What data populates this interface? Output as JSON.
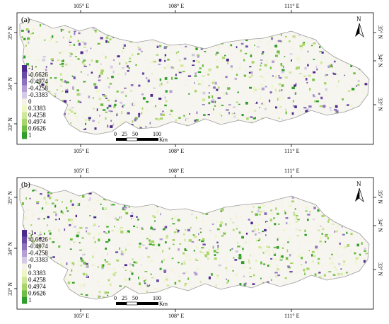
{
  "panels": [
    {
      "label": "(a)",
      "lon_ticks": [
        "105° E",
        "108° E",
        "111° E"
      ],
      "lat_ticks_left": [
        "35° N",
        "34° N",
        "33° N"
      ],
      "lat_ticks_right": [
        "35° N",
        "34° N",
        "33° N"
      ],
      "legend": [
        "-1",
        "-0.6626",
        "-0.4974",
        "-0.4258",
        "-0.3383",
        "0",
        "0.3383",
        "0.4258",
        "0.4974",
        "0.6626",
        "1"
      ],
      "scale": {
        "ticks": [
          "0",
          "25",
          "50",
          "100"
        ],
        "unit": "Km"
      },
      "north": "N"
    },
    {
      "label": "(b)",
      "lon_ticks": [
        "105° E",
        "108° E",
        "111° E"
      ],
      "lat_ticks_left": [
        "35° N",
        "34° N",
        "33° N"
      ],
      "lat_ticks_right": [
        "35° N",
        "34° N",
        "33° N"
      ],
      "legend": [
        "-1",
        "-0.6626",
        "-0.4974",
        "-0.4258",
        "-0.3383",
        "0",
        "0.3383",
        "0.4258",
        "0.4974",
        "0.6626",
        "1"
      ],
      "scale": {
        "ticks": [
          "0",
          "25",
          "50",
          "100"
        ],
        "unit": "Km"
      },
      "north": "N"
    }
  ],
  "colors": {
    "legend": [
      "#4b2a8c",
      "#6a4aa6",
      "#8e72bd",
      "#b4a0d2",
      "#d6cbe6",
      "#f6f2e8",
      "#eef6c8",
      "#cfe79a",
      "#a8d56a",
      "#6fbf44",
      "#2f9e2a"
    ],
    "frame": "#000000",
    "outline": "#9a9a9a"
  }
}
